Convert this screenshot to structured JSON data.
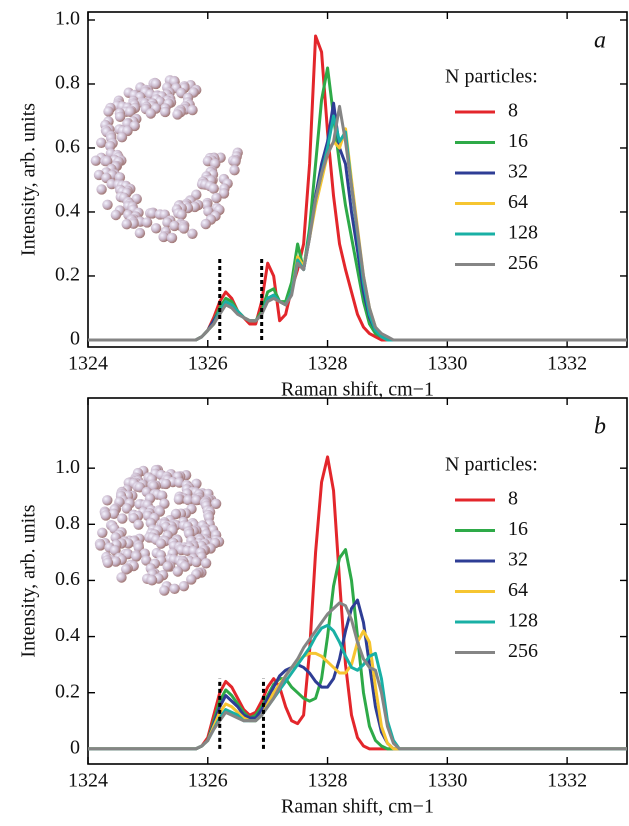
{
  "chart_data": [
    {
      "type": "line",
      "panel_label": "a",
      "x_label": "Raman shift, cm−1",
      "y_label": "Intensity, arb. units",
      "legend_title": "N particles:",
      "xlim": [
        1324,
        1333
      ],
      "ylim": [
        -0.022,
        1.025
      ],
      "xticks": [
        1324,
        1326,
        1328,
        1330,
        1332
      ],
      "yticks": [
        0,
        0.2,
        0.4,
        0.6,
        0.8,
        {
          "value": 1,
          "label": "1.0"
        }
      ],
      "markers": {
        "x": [
          1326.2,
          1326.9
        ],
        "top": 0.26
      },
      "x": [
        1324,
        1325.7,
        1325.8,
        1325.9,
        1326.0,
        1326.1,
        1326.2,
        1326.3,
        1326.4,
        1326.5,
        1326.6,
        1326.7,
        1326.8,
        1326.9,
        1327.0,
        1327.1,
        1327.2,
        1327.3,
        1327.4,
        1327.5,
        1327.6,
        1327.7,
        1327.8,
        1327.9,
        1328.0,
        1328.1,
        1328.2,
        1328.3,
        1328.4,
        1328.5,
        1328.6,
        1328.7,
        1328.8,
        1328.9,
        1329.0,
        1329.1,
        1329.2,
        1333
      ],
      "series": [
        {
          "name": "8",
          "color": "#e3262b",
          "values": [
            0,
            0,
            0,
            0.01,
            0.03,
            0.07,
            0.12,
            0.15,
            0.13,
            0.09,
            0.07,
            0.05,
            0.05,
            0.12,
            0.24,
            0.2,
            0.06,
            0.08,
            0.16,
            0.22,
            0.3,
            0.55,
            0.95,
            0.9,
            0.65,
            0.45,
            0.3,
            0.22,
            0.15,
            0.08,
            0.04,
            0.02,
            0.01,
            0,
            0,
            0,
            0,
            0
          ]
        },
        {
          "name": "16",
          "color": "#2eaa48",
          "values": [
            0,
            0,
            0,
            0.01,
            0.03,
            0.06,
            0.1,
            0.13,
            0.12,
            0.09,
            0.07,
            0.06,
            0.06,
            0.09,
            0.15,
            0.16,
            0.12,
            0.12,
            0.18,
            0.3,
            0.22,
            0.35,
            0.55,
            0.75,
            0.85,
            0.7,
            0.55,
            0.42,
            0.32,
            0.22,
            0.12,
            0.05,
            0.02,
            0.01,
            0,
            0,
            0,
            0
          ]
        },
        {
          "name": "32",
          "color": "#2e3d95",
          "values": [
            0,
            0,
            0,
            0.01,
            0.03,
            0.06,
            0.09,
            0.12,
            0.11,
            0.09,
            0.07,
            0.06,
            0.06,
            0.08,
            0.13,
            0.14,
            0.12,
            0.11,
            0.15,
            0.24,
            0.22,
            0.32,
            0.45,
            0.55,
            0.62,
            0.74,
            0.6,
            0.55,
            0.4,
            0.28,
            0.15,
            0.07,
            0.03,
            0.01,
            0,
            0,
            0,
            0
          ]
        },
        {
          "name": "64",
          "color": "#f6c531",
          "values": [
            0,
            0,
            0,
            0.01,
            0.03,
            0.05,
            0.09,
            0.12,
            0.11,
            0.09,
            0.07,
            0.06,
            0.06,
            0.08,
            0.13,
            0.13,
            0.12,
            0.11,
            0.15,
            0.26,
            0.23,
            0.32,
            0.42,
            0.5,
            0.58,
            0.62,
            0.6,
            0.66,
            0.5,
            0.35,
            0.2,
            0.1,
            0.04,
            0.01,
            0,
            0,
            0,
            0
          ]
        },
        {
          "name": "128",
          "color": "#19b0a5",
          "values": [
            0,
            0,
            0,
            0.01,
            0.03,
            0.05,
            0.09,
            0.12,
            0.11,
            0.09,
            0.07,
            0.06,
            0.06,
            0.08,
            0.13,
            0.14,
            0.12,
            0.11,
            0.15,
            0.25,
            0.22,
            0.33,
            0.44,
            0.52,
            0.6,
            0.7,
            0.62,
            0.65,
            0.48,
            0.33,
            0.18,
            0.08,
            0.03,
            0.01,
            0,
            0,
            0,
            0
          ]
        },
        {
          "name": "256",
          "color": "#858585",
          "values": [
            0,
            0,
            0,
            0.01,
            0.03,
            0.05,
            0.08,
            0.11,
            0.1,
            0.08,
            0.07,
            0.06,
            0.06,
            0.08,
            0.12,
            0.13,
            0.12,
            0.11,
            0.14,
            0.24,
            0.22,
            0.32,
            0.44,
            0.52,
            0.58,
            0.62,
            0.73,
            0.62,
            0.48,
            0.34,
            0.2,
            0.1,
            0.04,
            0.02,
            0.01,
            0,
            0,
            0
          ]
        }
      ]
    },
    {
      "type": "line",
      "panel_label": "b",
      "x_label": "Raman shift, cm−1",
      "y_label": "Intensity, arb. units",
      "legend_title": "N particles:",
      "xlim": [
        1324,
        1333
      ],
      "ylim": [
        -0.054,
        1.25
      ],
      "xticks": [
        1324,
        1326,
        1328,
        1330,
        1332
      ],
      "yticks": [
        0,
        0.2,
        0.4,
        0.6,
        0.8,
        {
          "value": 1,
          "label": "1.0"
        }
      ],
      "markers": {
        "x": [
          1326.2,
          1326.93
        ],
        "top": 0.25
      },
      "x": [
        1324,
        1325.7,
        1325.8,
        1325.9,
        1326.0,
        1326.1,
        1326.2,
        1326.3,
        1326.4,
        1326.5,
        1326.6,
        1326.7,
        1326.8,
        1326.9,
        1327.0,
        1327.1,
        1327.2,
        1327.3,
        1327.4,
        1327.5,
        1327.6,
        1327.7,
        1327.8,
        1327.9,
        1328.0,
        1328.1,
        1328.2,
        1328.3,
        1328.4,
        1328.5,
        1328.6,
        1328.7,
        1328.8,
        1328.9,
        1329.0,
        1329.1,
        1329.2,
        1333
      ],
      "series": [
        {
          "name": "8",
          "color": "#e3262b",
          "values": [
            0,
            0,
            0,
            0.01,
            0.04,
            0.12,
            0.2,
            0.24,
            0.22,
            0.18,
            0.14,
            0.12,
            0.13,
            0.17,
            0.22,
            0.25,
            0.22,
            0.15,
            0.1,
            0.09,
            0.12,
            0.35,
            0.7,
            0.95,
            1.04,
            0.92,
            0.6,
            0.3,
            0.12,
            0.04,
            0.01,
            0,
            0,
            0,
            0,
            0,
            0,
            0
          ]
        },
        {
          "name": "16",
          "color": "#2eaa48",
          "values": [
            0,
            0,
            0,
            0.01,
            0.03,
            0.1,
            0.17,
            0.21,
            0.19,
            0.16,
            0.13,
            0.11,
            0.12,
            0.15,
            0.19,
            0.23,
            0.25,
            0.25,
            0.22,
            0.2,
            0.18,
            0.17,
            0.18,
            0.25,
            0.4,
            0.58,
            0.68,
            0.71,
            0.6,
            0.4,
            0.2,
            0.08,
            0.03,
            0.01,
            0,
            0,
            0,
            0
          ]
        },
        {
          "name": "32",
          "color": "#2e3d95",
          "values": [
            0,
            0,
            0,
            0.01,
            0.03,
            0.09,
            0.15,
            0.19,
            0.17,
            0.15,
            0.12,
            0.11,
            0.11,
            0.14,
            0.18,
            0.22,
            0.26,
            0.28,
            0.29,
            0.3,
            0.29,
            0.27,
            0.24,
            0.22,
            0.22,
            0.25,
            0.32,
            0.42,
            0.5,
            0.53,
            0.45,
            0.3,
            0.15,
            0.06,
            0.02,
            0,
            0,
            0
          ]
        },
        {
          "name": "64",
          "color": "#f6c531",
          "values": [
            0,
            0,
            0,
            0.01,
            0.03,
            0.08,
            0.13,
            0.16,
            0.15,
            0.13,
            0.11,
            0.1,
            0.1,
            0.12,
            0.16,
            0.2,
            0.23,
            0.26,
            0.29,
            0.31,
            0.33,
            0.34,
            0.34,
            0.33,
            0.31,
            0.29,
            0.27,
            0.27,
            0.3,
            0.38,
            0.42,
            0.38,
            0.22,
            0.08,
            0.02,
            0,
            0,
            0
          ]
        },
        {
          "name": "128",
          "color": "#19b0a5",
          "values": [
            0,
            0,
            0,
            0.01,
            0.03,
            0.07,
            0.11,
            0.14,
            0.13,
            0.12,
            0.1,
            0.1,
            0.1,
            0.12,
            0.15,
            0.18,
            0.21,
            0.24,
            0.27,
            0.3,
            0.33,
            0.36,
            0.4,
            0.43,
            0.44,
            0.42,
            0.38,
            0.33,
            0.29,
            0.28,
            0.3,
            0.33,
            0.34,
            0.25,
            0.1,
            0.03,
            0,
            0
          ]
        },
        {
          "name": "256",
          "color": "#858585",
          "values": [
            0,
            0,
            0,
            0.01,
            0.03,
            0.07,
            0.1,
            0.13,
            0.12,
            0.11,
            0.1,
            0.1,
            0.1,
            0.12,
            0.15,
            0.18,
            0.22,
            0.26,
            0.29,
            0.32,
            0.36,
            0.39,
            0.42,
            0.45,
            0.48,
            0.5,
            0.52,
            0.51,
            0.46,
            0.38,
            0.32,
            0.29,
            0.28,
            0.2,
            0.08,
            0.02,
            0,
            0
          ]
        }
      ]
    }
  ]
}
